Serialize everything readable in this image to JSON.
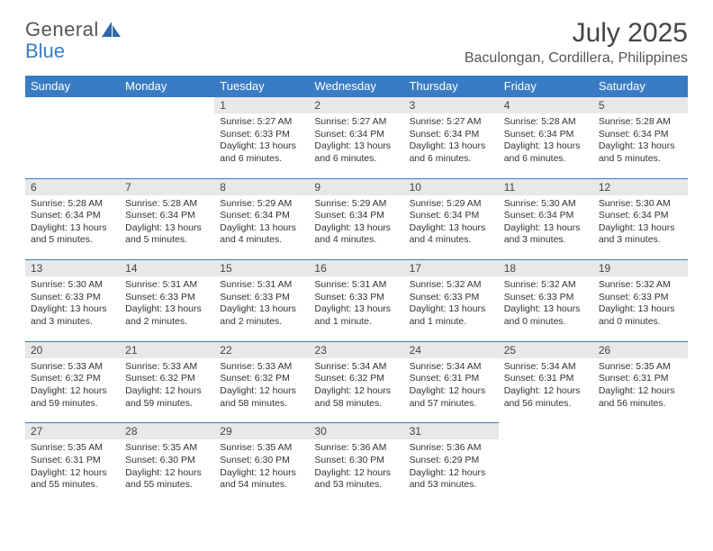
{
  "brand": {
    "part1": "General",
    "part2": "Blue"
  },
  "title": "July 2025",
  "location": "Baculongan, Cordillera, Philippines",
  "colors": {
    "header_bg": "#3a7cc4",
    "header_fg": "#ffffff",
    "daynum_bg": "#e8e8e8",
    "rule": "#3a7cc4",
    "page_bg": "#ffffff",
    "text": "#333333"
  },
  "day_labels": [
    "Sunday",
    "Monday",
    "Tuesday",
    "Wednesday",
    "Thursday",
    "Friday",
    "Saturday"
  ],
  "weeks": [
    [
      null,
      null,
      {
        "n": "1",
        "sr": "5:27 AM",
        "ss": "6:33 PM",
        "dl": "13 hours and 6 minutes."
      },
      {
        "n": "2",
        "sr": "5:27 AM",
        "ss": "6:34 PM",
        "dl": "13 hours and 6 minutes."
      },
      {
        "n": "3",
        "sr": "5:27 AM",
        "ss": "6:34 PM",
        "dl": "13 hours and 6 minutes."
      },
      {
        "n": "4",
        "sr": "5:28 AM",
        "ss": "6:34 PM",
        "dl": "13 hours and 6 minutes."
      },
      {
        "n": "5",
        "sr": "5:28 AM",
        "ss": "6:34 PM",
        "dl": "13 hours and 5 minutes."
      }
    ],
    [
      {
        "n": "6",
        "sr": "5:28 AM",
        "ss": "6:34 PM",
        "dl": "13 hours and 5 minutes."
      },
      {
        "n": "7",
        "sr": "5:28 AM",
        "ss": "6:34 PM",
        "dl": "13 hours and 5 minutes."
      },
      {
        "n": "8",
        "sr": "5:29 AM",
        "ss": "6:34 PM",
        "dl": "13 hours and 4 minutes."
      },
      {
        "n": "9",
        "sr": "5:29 AM",
        "ss": "6:34 PM",
        "dl": "13 hours and 4 minutes."
      },
      {
        "n": "10",
        "sr": "5:29 AM",
        "ss": "6:34 PM",
        "dl": "13 hours and 4 minutes."
      },
      {
        "n": "11",
        "sr": "5:30 AM",
        "ss": "6:34 PM",
        "dl": "13 hours and 3 minutes."
      },
      {
        "n": "12",
        "sr": "5:30 AM",
        "ss": "6:34 PM",
        "dl": "13 hours and 3 minutes."
      }
    ],
    [
      {
        "n": "13",
        "sr": "5:30 AM",
        "ss": "6:33 PM",
        "dl": "13 hours and 3 minutes."
      },
      {
        "n": "14",
        "sr": "5:31 AM",
        "ss": "6:33 PM",
        "dl": "13 hours and 2 minutes."
      },
      {
        "n": "15",
        "sr": "5:31 AM",
        "ss": "6:33 PM",
        "dl": "13 hours and 2 minutes."
      },
      {
        "n": "16",
        "sr": "5:31 AM",
        "ss": "6:33 PM",
        "dl": "13 hours and 1 minute."
      },
      {
        "n": "17",
        "sr": "5:32 AM",
        "ss": "6:33 PM",
        "dl": "13 hours and 1 minute."
      },
      {
        "n": "18",
        "sr": "5:32 AM",
        "ss": "6:33 PM",
        "dl": "13 hours and 0 minutes."
      },
      {
        "n": "19",
        "sr": "5:32 AM",
        "ss": "6:33 PM",
        "dl": "13 hours and 0 minutes."
      }
    ],
    [
      {
        "n": "20",
        "sr": "5:33 AM",
        "ss": "6:32 PM",
        "dl": "12 hours and 59 minutes."
      },
      {
        "n": "21",
        "sr": "5:33 AM",
        "ss": "6:32 PM",
        "dl": "12 hours and 59 minutes."
      },
      {
        "n": "22",
        "sr": "5:33 AM",
        "ss": "6:32 PM",
        "dl": "12 hours and 58 minutes."
      },
      {
        "n": "23",
        "sr": "5:34 AM",
        "ss": "6:32 PM",
        "dl": "12 hours and 58 minutes."
      },
      {
        "n": "24",
        "sr": "5:34 AM",
        "ss": "6:31 PM",
        "dl": "12 hours and 57 minutes."
      },
      {
        "n": "25",
        "sr": "5:34 AM",
        "ss": "6:31 PM",
        "dl": "12 hours and 56 minutes."
      },
      {
        "n": "26",
        "sr": "5:35 AM",
        "ss": "6:31 PM",
        "dl": "12 hours and 56 minutes."
      }
    ],
    [
      {
        "n": "27",
        "sr": "5:35 AM",
        "ss": "6:31 PM",
        "dl": "12 hours and 55 minutes."
      },
      {
        "n": "28",
        "sr": "5:35 AM",
        "ss": "6:30 PM",
        "dl": "12 hours and 55 minutes."
      },
      {
        "n": "29",
        "sr": "5:35 AM",
        "ss": "6:30 PM",
        "dl": "12 hours and 54 minutes."
      },
      {
        "n": "30",
        "sr": "5:36 AM",
        "ss": "6:30 PM",
        "dl": "12 hours and 53 minutes."
      },
      {
        "n": "31",
        "sr": "5:36 AM",
        "ss": "6:29 PM",
        "dl": "12 hours and 53 minutes."
      },
      null,
      null
    ]
  ],
  "labels": {
    "sunrise": "Sunrise:",
    "sunset": "Sunset:",
    "daylight": "Daylight:"
  }
}
